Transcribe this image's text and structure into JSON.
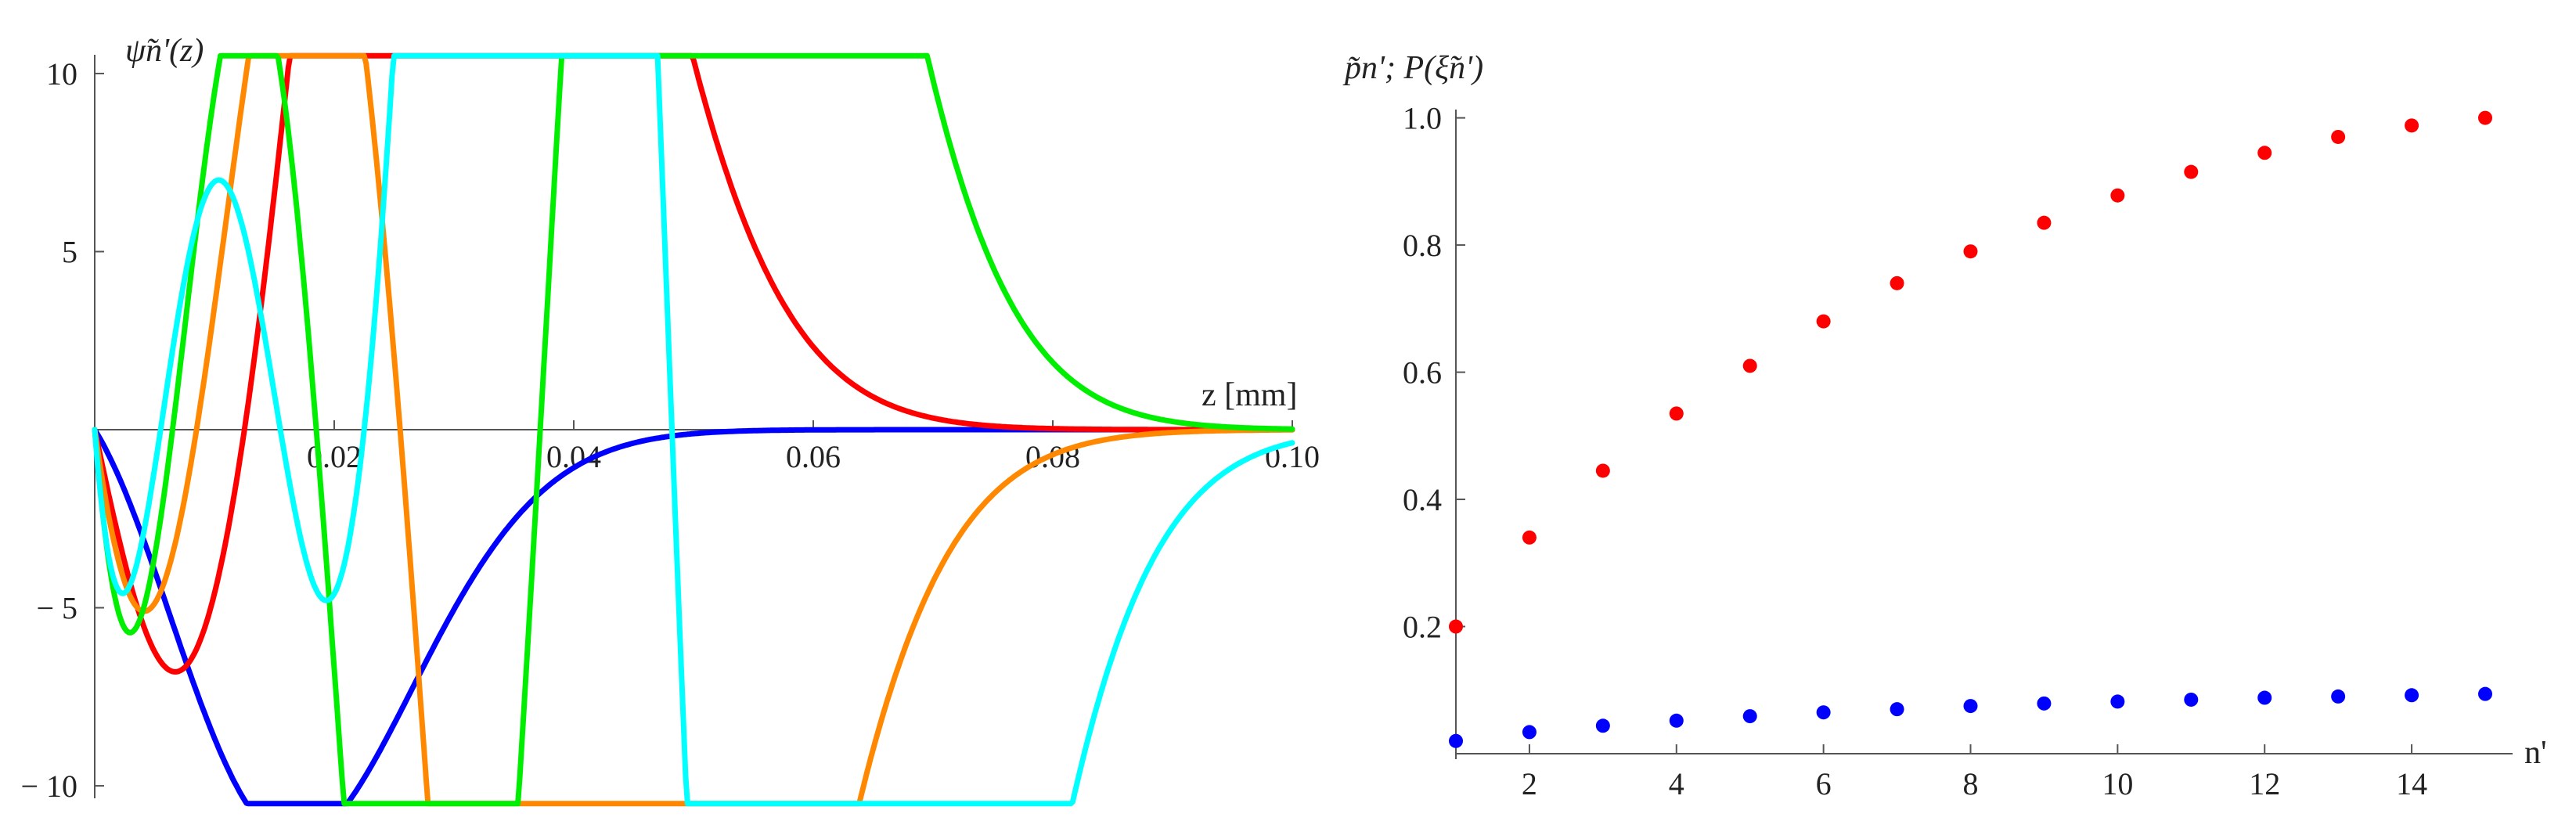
{
  "chart_data": [
    {
      "type": "line",
      "ylabel": "ψ̃n'(z)",
      "xlabel": "z [mm]",
      "xlim": [
        0,
        0.1
      ],
      "ylim": [
        -10,
        10
      ],
      "x_ticks": [
        0.02,
        0.04,
        0.06,
        0.08,
        0.1
      ],
      "x_tick_labels": [
        "0.02",
        "0.04",
        "0.06",
        "0.08",
        "0.10"
      ],
      "y_ticks": [
        -10,
        -5,
        5,
        10
      ],
      "y_tick_labels": [
        "− 10",
        "− 5",
        "5",
        "10"
      ],
      "grid": false,
      "series": [
        {
          "color": "#0000ff",
          "nodes": [],
          "amp": -10.0,
          "x_max": 0.0085,
          "decay": 0.026
        },
        {
          "color": "#ff0000",
          "nodes": [
            0.0125
          ],
          "amp": -6.8,
          "x_max": 0.0053,
          "decay": 0.04
        },
        {
          "color": "#ff8800",
          "nodes": [
            0.0085,
            0.0255
          ],
          "amp": -5.1,
          "x_max": 0.0045,
          "decay": 0.05
        },
        {
          "color": "#00ee00",
          "nodes": [
            0.0065,
            0.0185,
            0.0372
          ],
          "amp": -5.7,
          "x_max": 0.0042,
          "decay": 0.055
        },
        {
          "color": "#00ffff",
          "nodes": [
            0.0055,
            0.0155,
            0.0225,
            0.0482
          ],
          "amp": -4.6,
          "x_max": 0.0038,
          "decay": 0.064
        }
      ]
    },
    {
      "type": "scatter",
      "ylabel": "p̃n'; P(ξ̃n')",
      "xlabel": "n'",
      "xlim": [
        1,
        15
      ],
      "ylim": [
        0,
        1.05
      ],
      "x_ticks": [
        2,
        4,
        6,
        8,
        10,
        12,
        14
      ],
      "x_tick_labels": [
        "2",
        "4",
        "6",
        "8",
        "10",
        "12",
        "14"
      ],
      "y_ticks": [
        0.2,
        0.4,
        0.6,
        0.8,
        1.0
      ],
      "y_tick_labels": [
        "0.2",
        "0.4",
        "0.6",
        "0.8",
        "1.0"
      ],
      "grid": false,
      "x": [
        1,
        2,
        3,
        4,
        5,
        6,
        7,
        8,
        9,
        10,
        11,
        12,
        13,
        14,
        15
      ],
      "series": [
        {
          "color": "#ff0000",
          "values": [
            0.2,
            0.34,
            0.445,
            0.535,
            0.61,
            0.68,
            0.74,
            0.79,
            0.835,
            0.878,
            0.915,
            0.945,
            0.97,
            0.988,
            1.0
          ]
        },
        {
          "color": "#0000ff",
          "values": [
            0.02,
            0.034,
            0.044,
            0.052,
            0.059,
            0.065,
            0.07,
            0.075,
            0.079,
            0.082,
            0.085,
            0.088,
            0.09,
            0.092,
            0.094
          ]
        }
      ]
    }
  ]
}
